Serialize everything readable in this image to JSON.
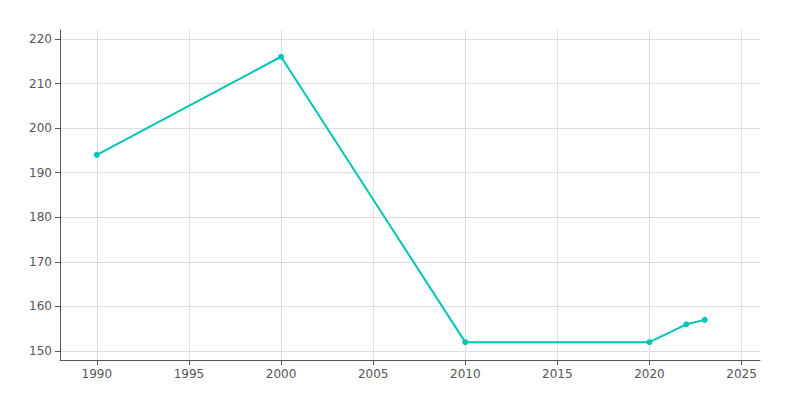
{
  "chart_data": {
    "type": "line",
    "x": [
      1990,
      2000,
      2010,
      2020,
      2022,
      2023
    ],
    "values": [
      194,
      216,
      152,
      152,
      156,
      157
    ],
    "color": "#00C4B4",
    "marker": "circle",
    "xlim": [
      1988,
      2026
    ],
    "ylim": [
      148,
      222
    ],
    "xticks": [
      1990,
      1995,
      2000,
      2005,
      2010,
      2015,
      2020,
      2025
    ],
    "yticks": [
      150,
      160,
      170,
      180,
      190,
      200,
      210,
      220
    ],
    "grid": true
  }
}
